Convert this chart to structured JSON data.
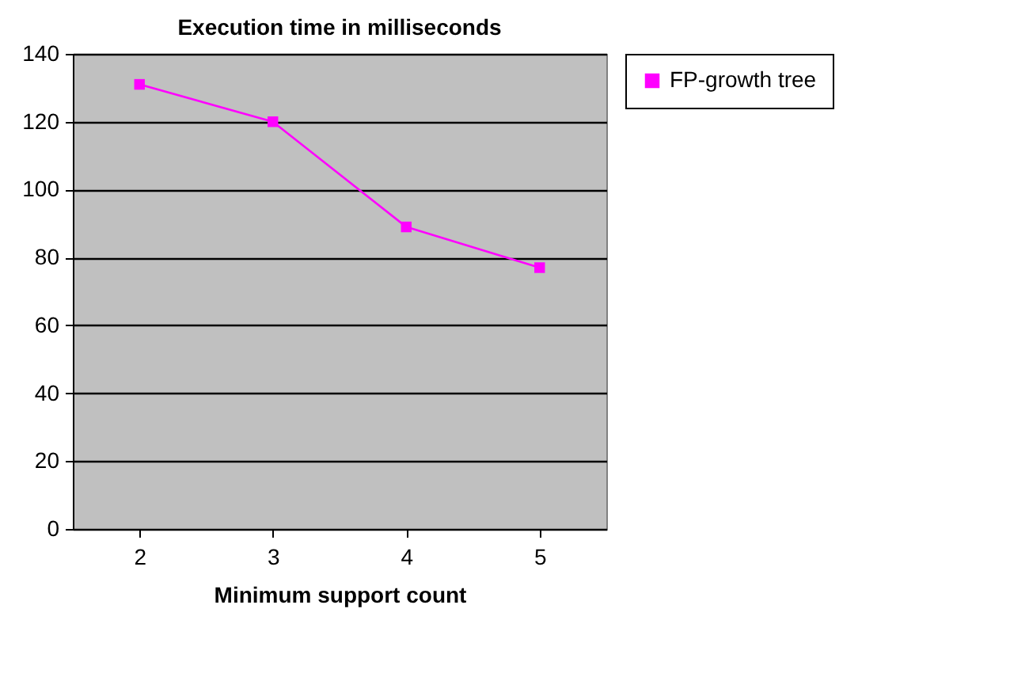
{
  "chart_data": {
    "type": "line",
    "title": "Execution time in milliseconds",
    "xlabel": "Minimum support count",
    "categories": [
      "2",
      "3",
      "4",
      "5"
    ],
    "series": [
      {
        "name": "FP-growth tree",
        "color": "#ff00ff",
        "values": [
          131,
          120,
          89,
          77
        ]
      }
    ],
    "ylim": [
      0,
      140
    ],
    "yticks": [
      0,
      20,
      40,
      60,
      80,
      100,
      120,
      140
    ],
    "grid": "y",
    "legend": "right",
    "marker": "square"
  }
}
